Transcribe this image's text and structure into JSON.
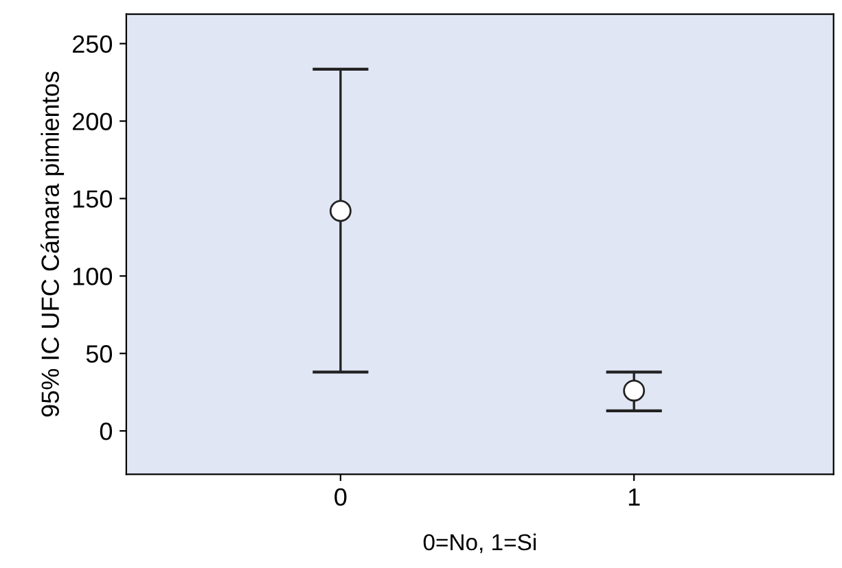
{
  "chart_data": {
    "type": "scatter",
    "xlabel": "0=No, 1=Si",
    "ylabel": "95% IC UFC Cámara pimientos",
    "x": [
      0,
      1
    ],
    "values": [
      142,
      26
    ],
    "errors": [
      [
        38,
        233.5
      ],
      [
        13,
        38
      ]
    ],
    "color": "#ffffff",
    "marker": "circle",
    "xlim": [
      -0.73,
      1.68
    ],
    "xticks": [
      0,
      1
    ],
    "ylim": [
      -28,
      269
    ],
    "yticks": [
      0,
      50,
      100,
      150,
      200,
      250
    ],
    "grid": false
  }
}
